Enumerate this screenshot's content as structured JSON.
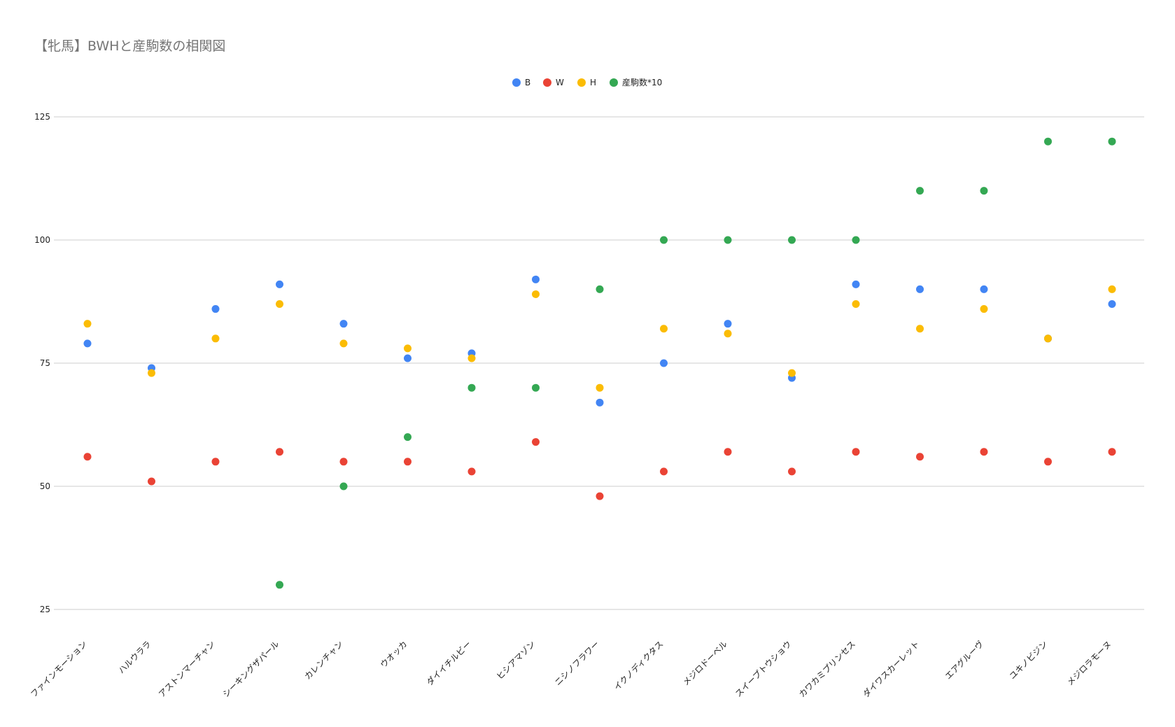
{
  "chart_data": {
    "type": "scatter",
    "title": "【牝馬】BWHと産駒数の相関図",
    "xlabel": "",
    "ylabel": "",
    "ylim": [
      25,
      125
    ],
    "yticks": [
      25,
      50,
      75,
      100,
      125
    ],
    "grid": true,
    "legend_position": "top",
    "categories": [
      "ファインモーション",
      "ハルウララ",
      "アストンマーチャン",
      "シーキングザパール",
      "カレンチャン",
      "ウオッカ",
      "ダイイチルビー",
      "ヒシアマゾン",
      "ニシノフラワー",
      "イクノディクタス",
      "メジロドーベル",
      "スイープトウショウ",
      "カワカミプリンセス",
      "ダイワスカーレット",
      "エアグルーヴ",
      "ユキノビジン",
      "メジロラモーヌ"
    ],
    "series": [
      {
        "name": "B",
        "color": "#4285F4",
        "values": [
          79,
          74,
          86,
          91,
          83,
          76,
          77,
          92,
          67,
          75,
          83,
          72,
          91,
          90,
          90,
          80,
          87
        ]
      },
      {
        "name": "W",
        "color": "#EA4335",
        "values": [
          56,
          51,
          55,
          57,
          55,
          55,
          53,
          59,
          48,
          53,
          57,
          53,
          57,
          56,
          57,
          55,
          57
        ]
      },
      {
        "name": "H",
        "color": "#FBBC04",
        "values": [
          83,
          73,
          80,
          87,
          79,
          78,
          76,
          89,
          70,
          82,
          81,
          73,
          87,
          82,
          86,
          80,
          90
        ]
      },
      {
        "name": "産駒数*10",
        "color": "#34A853",
        "values": [
          null,
          null,
          null,
          30,
          50,
          60,
          70,
          70,
          90,
          100,
          100,
          100,
          100,
          110,
          110,
          120,
          120
        ]
      }
    ]
  }
}
